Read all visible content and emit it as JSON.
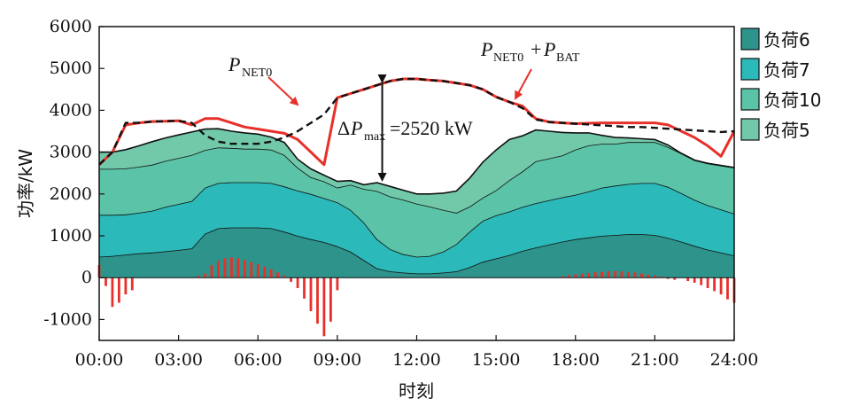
{
  "chart_data": {
    "type": "area",
    "title": "",
    "xlabel": "时刻",
    "ylabel": "功率/kW",
    "xlim": [
      0,
      24
    ],
    "ylim": [
      -1500,
      6000
    ],
    "x_ticks": [
      "00:00",
      "03:00",
      "06:00",
      "09:00",
      "12:00",
      "15:00",
      "18:00",
      "21:00",
      "24:00"
    ],
    "y_ticks": [
      "-1000",
      "0",
      "1000",
      "2000",
      "3000",
      "4000",
      "5000",
      "6000"
    ],
    "x": [
      0,
      0.5,
      1,
      1.5,
      2,
      2.5,
      3,
      3.5,
      4,
      4.5,
      5,
      5.5,
      6,
      6.5,
      7,
      7.5,
      8,
      8.5,
      9,
      9.5,
      10,
      10.5,
      11,
      11.5,
      12,
      12.5,
      13,
      13.5,
      14,
      14.5,
      15,
      15.5,
      16,
      16.5,
      17,
      17.5,
      18,
      18.5,
      19,
      19.5,
      20,
      20.5,
      21,
      21.5,
      22,
      22.5,
      23,
      23.5,
      24
    ],
    "series": [
      {
        "name": "负荷6",
        "color": "#2e938b",
        "values": [
          500,
          520,
          550,
          580,
          600,
          630,
          660,
          700,
          1050,
          1180,
          1200,
          1200,
          1200,
          1180,
          1100,
          1000,
          920,
          850,
          750,
          620,
          420,
          220,
          150,
          120,
          100,
          100,
          120,
          150,
          250,
          380,
          460,
          540,
          640,
          720,
          790,
          860,
          920,
          960,
          1000,
          1020,
          1040,
          1040,
          1020,
          950,
          860,
          760,
          670,
          600,
          530
        ]
      },
      {
        "name": "负荷7",
        "color": "#2bb9b9",
        "values": [
          1000,
          980,
          960,
          970,
          1000,
          1060,
          1100,
          1130,
          1100,
          1080,
          1080,
          1080,
          1080,
          1080,
          1080,
          1080,
          1080,
          1050,
          1050,
          1000,
          900,
          700,
          530,
          440,
          400,
          420,
          500,
          650,
          850,
          980,
          1030,
          1040,
          1050,
          1060,
          1060,
          1060,
          1060,
          1100,
          1150,
          1180,
          1200,
          1220,
          1240,
          1220,
          1160,
          1100,
          1060,
          1030,
          1000
        ]
      },
      {
        "name": "负荷10",
        "color": "#5bc3a7",
        "values": [
          1100,
          1100,
          1100,
          1100,
          1100,
          1100,
          1100,
          1100,
          900,
          850,
          820,
          800,
          800,
          800,
          750,
          550,
          400,
          400,
          350,
          600,
          800,
          1150,
          1260,
          1300,
          1270,
          1180,
          1000,
          750,
          600,
          550,
          600,
          750,
          850,
          1000,
          1000,
          1000,
          1080,
          1100,
          1050,
          1000,
          1000,
          980,
          980,
          950,
          950,
          950,
          1000,
          1050,
          1100
        ]
      },
      {
        "name": "负荷5",
        "color": "#72c9aa",
        "values": [
          400,
          400,
          450,
          500,
          550,
          550,
          550,
          550,
          500,
          450,
          400,
          380,
          350,
          300,
          300,
          200,
          200,
          150,
          150,
          100,
          100,
          200,
          240,
          230,
          230,
          300,
          400,
          520,
          680,
          850,
          960,
          970,
          850,
          750,
          650,
          550,
          400,
          300,
          200,
          150,
          100,
          80,
          60,
          50,
          0,
          0,
          0,
          0,
          0
        ]
      }
    ],
    "overlay_lines": [
      {
        "name": "P_NET0+P_BAT",
        "style": "solid",
        "color": "#e8302a",
        "values": [
          2700,
          3000,
          3650,
          3700,
          3730,
          3740,
          3750,
          3650,
          3800,
          3800,
          3700,
          3600,
          3550,
          3500,
          3450,
          3300,
          3000,
          2700,
          4300,
          4400,
          4500,
          4600,
          4700,
          4750,
          4750,
          4720,
          4700,
          4650,
          4600,
          4500,
          4320,
          4200,
          4100,
          3800,
          3720,
          3700,
          3680,
          3690,
          3700,
          3700,
          3700,
          3700,
          3700,
          3650,
          3500,
          3350,
          3150,
          2900,
          3500
        ]
      },
      {
        "name": "P_NET0",
        "style": "dashed",
        "color": "#111111",
        "values": [
          2700,
          3000,
          3700,
          3700,
          3730,
          3740,
          3750,
          3700,
          3400,
          3250,
          3200,
          3200,
          3200,
          3250,
          3350,
          3500,
          3700,
          3900,
          4300,
          4400,
          4500,
          4600,
          4700,
          4750,
          4750,
          4720,
          4700,
          4650,
          4600,
          4500,
          4320,
          4200,
          4050,
          3780,
          3720,
          3700,
          3680,
          3660,
          3640,
          3620,
          3600,
          3600,
          3580,
          3560,
          3540,
          3520,
          3500,
          3480,
          3500
        ]
      }
    ],
    "battery_bars": {
      "name": "P_BAT",
      "color": "#e8302a",
      "x": [
        0.0,
        0.25,
        0.5,
        0.75,
        1.0,
        1.25,
        3.75,
        4.0,
        4.25,
        4.5,
        4.75,
        5.0,
        5.25,
        5.5,
        5.75,
        6.0,
        6.25,
        6.5,
        6.75,
        7.0,
        7.25,
        7.5,
        7.75,
        8.0,
        8.25,
        8.5,
        8.75,
        9.0,
        17.5,
        17.75,
        18.0,
        18.25,
        18.5,
        18.75,
        19.0,
        19.25,
        19.5,
        19.75,
        20.0,
        20.25,
        20.5,
        20.75,
        21.0,
        21.25,
        21.5,
        21.75,
        22.25,
        22.5,
        22.75,
        23.0,
        23.25,
        23.5,
        23.75,
        24.0
      ],
      "values": [
        300,
        -200,
        -700,
        -600,
        -400,
        -300,
        40,
        100,
        300,
        400,
        470,
        480,
        460,
        420,
        370,
        320,
        270,
        200,
        120,
        50,
        -100,
        -250,
        -500,
        -800,
        -1100,
        -1400,
        -1050,
        -300,
        30,
        60,
        80,
        100,
        110,
        130,
        140,
        150,
        160,
        150,
        140,
        120,
        100,
        70,
        50,
        30,
        -30,
        -50,
        -80,
        -120,
        -180,
        -250,
        -320,
        -400,
        -520,
        -600
      ]
    },
    "annotations": [
      {
        "text": "ΔP",
        "sub": "max",
        "value_text": "=2520 kW",
        "x": 11.5,
        "from": 2250,
        "to": 4770
      }
    ],
    "legend": {
      "position": "right-outside",
      "items": [
        "负荷6",
        "负荷7",
        "负荷10",
        "负荷5"
      ]
    }
  },
  "labels": {
    "p_net0_main": "P",
    "p_net0_sub": "NET0",
    "p_sum_main1": "P",
    "p_sum_sub1": "NET0",
    "p_sum_plus": "+",
    "p_sum_main2": "P",
    "p_sum_sub2": "BAT",
    "dp_delta": "Δ",
    "dp_main": "P",
    "dp_sub": "max",
    "dp_value": "=2520 kW"
  }
}
